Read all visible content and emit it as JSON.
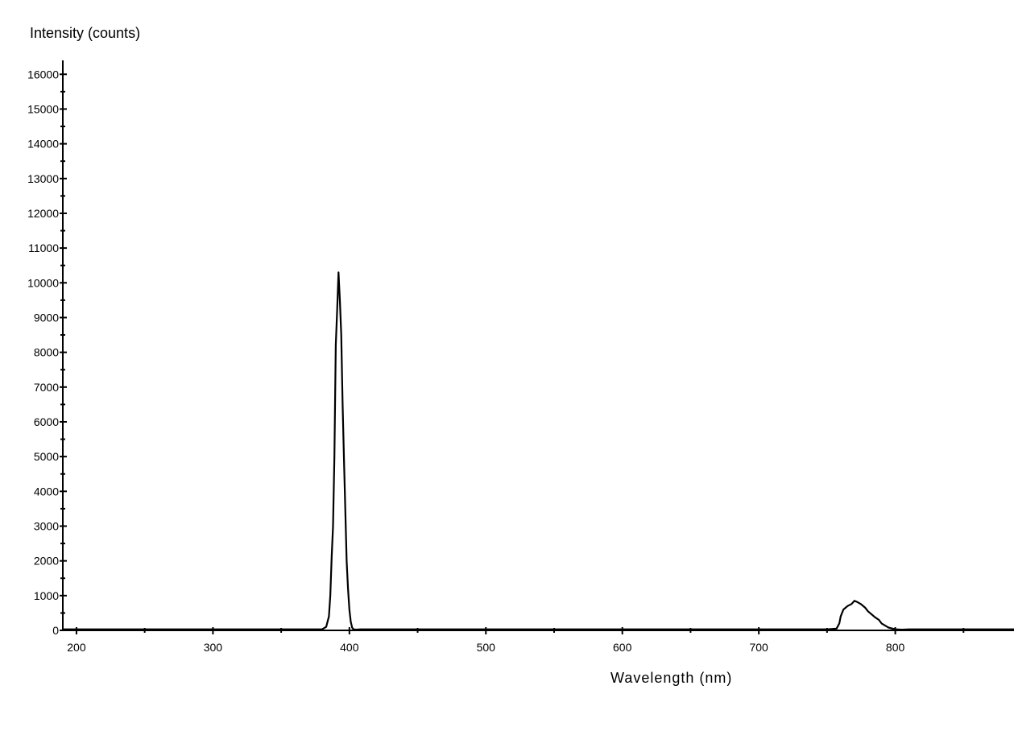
{
  "chart_data": {
    "type": "line",
    "title": "",
    "xlabel": "Wavelength (nm)",
    "ylabel": "Intensity (counts)",
    "xlim": [
      190,
      887
    ],
    "ylim": [
      0,
      16400
    ],
    "x_ticks": [
      200,
      300,
      400,
      500,
      600,
      700,
      800
    ],
    "x_tick_labels": [
      "200",
      "300",
      "400",
      "500",
      "600",
      "700",
      "800"
    ],
    "y_ticks": [
      0,
      1000,
      2000,
      3000,
      4000,
      5000,
      6000,
      7000,
      8000,
      9000,
      10000,
      11000,
      12000,
      13000,
      14000,
      15000,
      16000
    ],
    "y_tick_labels": [
      "0",
      "1000",
      "2000",
      "3000",
      "4000",
      "5000",
      "6000",
      "7000",
      "8000",
      "9000",
      "10000",
      "11000",
      "12000",
      "13000",
      "14000",
      "15000",
      "16000"
    ],
    "grid": false,
    "legend": "none",
    "line_color": "#000000",
    "series": [
      {
        "x": [
          190,
          380,
          383,
          385,
          386,
          387,
          388,
          389,
          390,
          391,
          392,
          393,
          394,
          395,
          396,
          397,
          398,
          399,
          400,
          401,
          402,
          403,
          405,
          408,
          420,
          600,
          750,
          757,
          759,
          760,
          762,
          765,
          768,
          770,
          772,
          775,
          778,
          780,
          783,
          785,
          788,
          790,
          793,
          795,
          798,
          800,
          805,
          810,
          887
        ],
        "y": [
          30,
          30,
          100,
          400,
          1000,
          2100,
          3000,
          5000,
          8200,
          9200,
          10300,
          9500,
          8500,
          6500,
          5000,
          3500,
          2000,
          1200,
          600,
          250,
          80,
          30,
          20,
          30,
          30,
          30,
          30,
          50,
          200,
          400,
          600,
          700,
          760,
          850,
          820,
          750,
          650,
          550,
          450,
          380,
          300,
          200,
          130,
          80,
          50,
          30,
          20,
          30,
          30
        ]
      }
    ]
  }
}
